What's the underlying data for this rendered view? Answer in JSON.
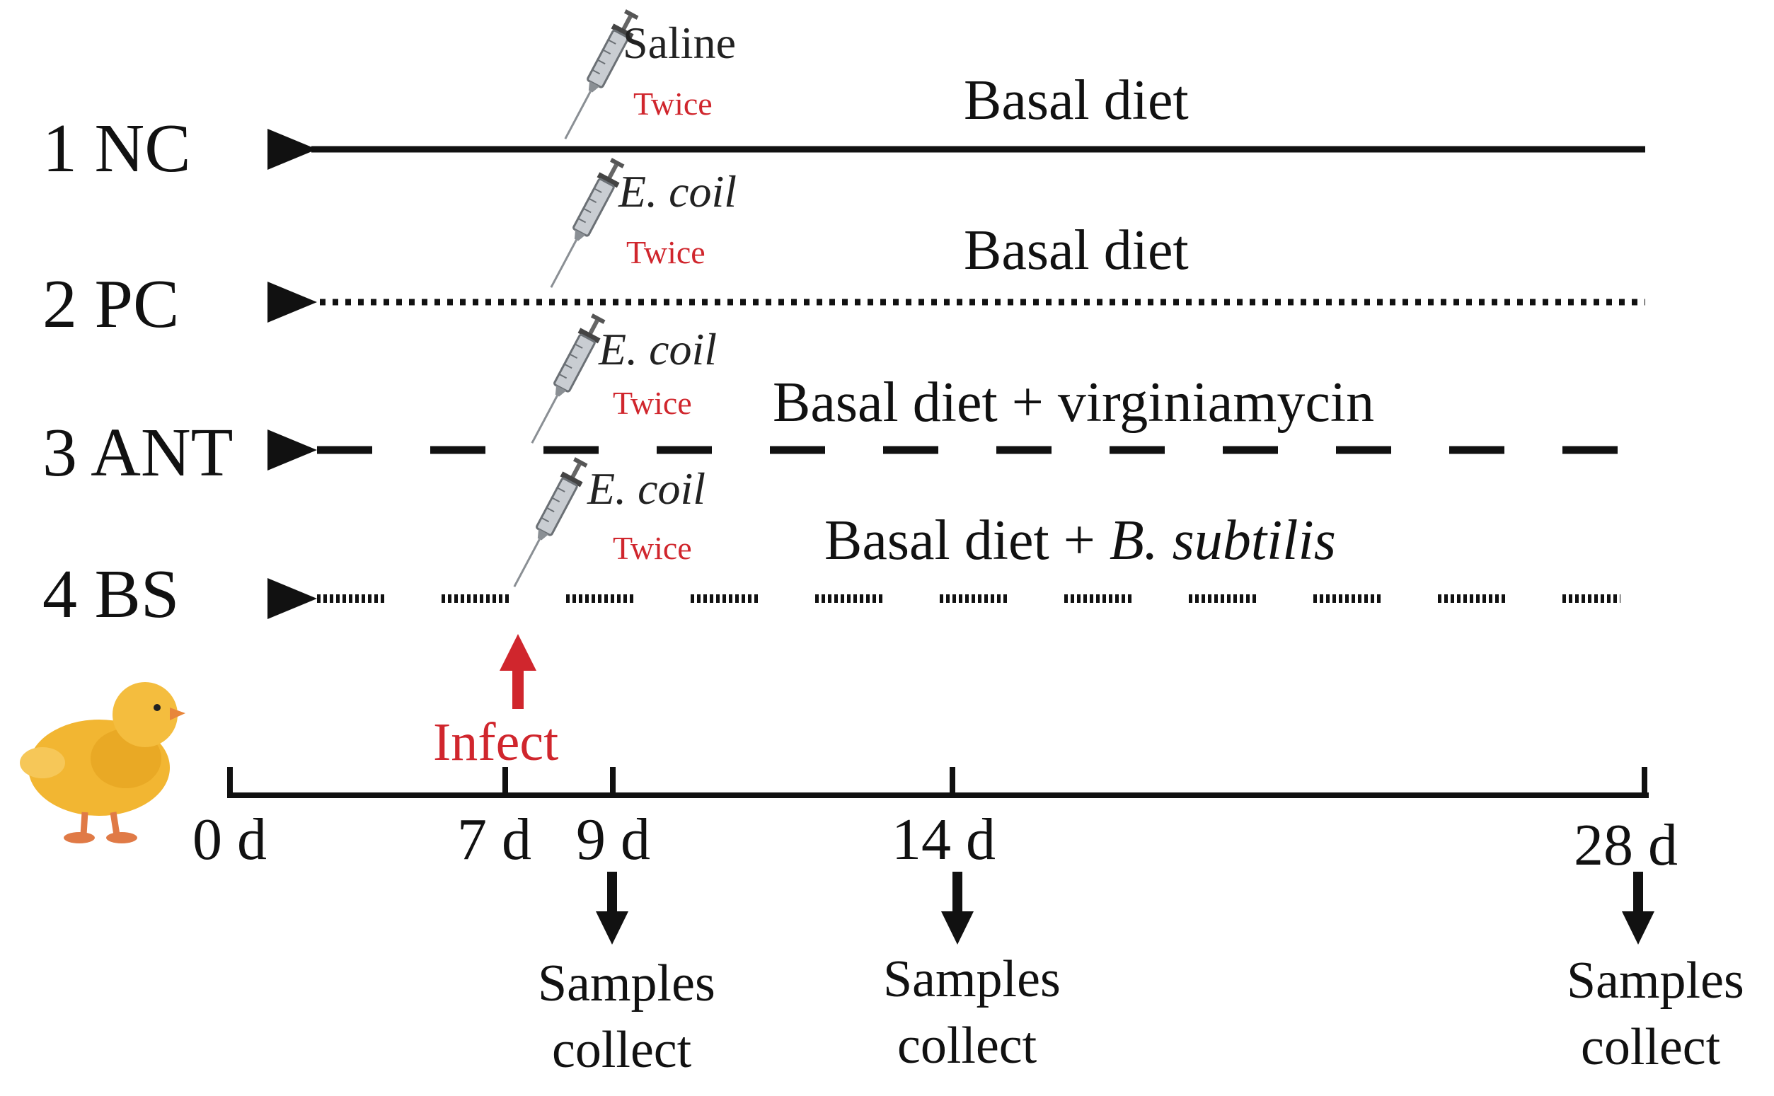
{
  "groups": [
    {
      "label": "1 NC",
      "agent": "Saline",
      "agent_italic": false,
      "dose": "Twice",
      "diet": "Basal diet",
      "diet_extra": "",
      "line_style": "solid"
    },
    {
      "label": "2 PC",
      "agent": "E. coil",
      "agent_italic": true,
      "dose": "Twice",
      "diet": "Basal diet",
      "diet_extra": "",
      "line_style": "dotted"
    },
    {
      "label": "3 ANT",
      "agent": "E. coil",
      "agent_italic": true,
      "dose": "Twice",
      "diet": "Basal diet + virginiamycin",
      "diet_extra": "",
      "line_style": "dashed"
    },
    {
      "label": "4 BS",
      "agent": "E. coil",
      "agent_italic": true,
      "dose": "Twice",
      "diet": "Basal diet + ",
      "diet_extra": "B. subtilis",
      "line_style": "dash-dotted"
    }
  ],
  "infect": {
    "label": "Infect",
    "color": "#d0262d"
  },
  "timeline": {
    "days": [
      "0 d",
      "7 d",
      "9 d",
      "14 d",
      "28 d"
    ],
    "sample_label_line1": "Samples",
    "sample_label_line2": "collect",
    "sample_days": [
      "9 d",
      "14 d",
      "28 d"
    ]
  },
  "icons": [
    "syringe-icon",
    "duckling-icon",
    "arrow-up-icon",
    "arrow-down-icon"
  ],
  "colors": {
    "text": "#111111",
    "accent": "#d0262d",
    "duck": "#f2b632"
  }
}
